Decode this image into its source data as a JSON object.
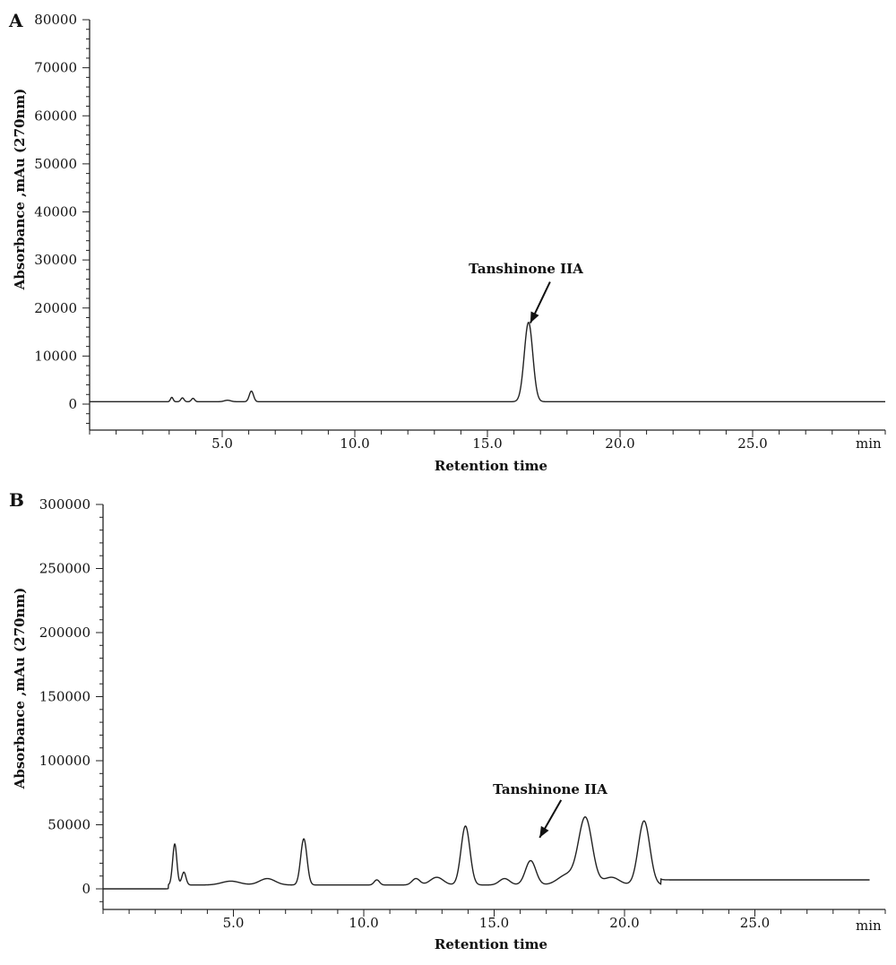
{
  "chart_data": [
    {
      "panel": "A",
      "type": "line",
      "xlabel": "Retention time",
      "ylabel": "Absorbance ,mAu (270nm)",
      "x_unit_label": "min",
      "xlim": [
        0,
        30
      ],
      "ylim": [
        -5000,
        80000
      ],
      "xticks": [
        5.0,
        10.0,
        15.0,
        20.0,
        25.0
      ],
      "xtick_labels": [
        "5.0",
        "10.0",
        "15.0",
        "20.0",
        "25.0"
      ],
      "yticks": [
        0,
        10000,
        20000,
        30000,
        40000,
        50000,
        60000,
        70000,
        80000
      ],
      "ytick_labels": [
        "0",
        "10000",
        "20000",
        "30000",
        "40000",
        "50000",
        "60000",
        "70000",
        "80000"
      ],
      "baseline": 500,
      "peaks": [
        {
          "x": 3.1,
          "height": 900,
          "width": 0.05
        },
        {
          "x": 3.5,
          "height": 800,
          "width": 0.06
        },
        {
          "x": 3.9,
          "height": 700,
          "width": 0.06
        },
        {
          "x": 5.2,
          "height": 300,
          "width": 0.12
        },
        {
          "x": 6.1,
          "height": 2200,
          "width": 0.08
        },
        {
          "x": 16.55,
          "height": 16500,
          "width": 0.16
        }
      ],
      "annotation": {
        "text": "Tanshinone IIA",
        "x": 16.55,
        "y": 16500
      }
    },
    {
      "panel": "B",
      "type": "line",
      "xlabel": "Retention time",
      "ylabel": "Absorbance ,mAu (270nm)",
      "x_unit_label": "min",
      "xlim": [
        0,
        30
      ],
      "ylim": [
        -10000,
        300000
      ],
      "xticks": [
        5.0,
        10.0,
        15.0,
        20.0,
        25.0
      ],
      "xtick_labels": [
        "5.0",
        "10.0",
        "15.0",
        "20.0",
        "25.0"
      ],
      "yticks": [
        0,
        50000,
        100000,
        150000,
        200000,
        250000,
        300000
      ],
      "ytick_labels": [
        "0",
        "50000",
        "100000",
        "150000",
        "200000",
        "250000",
        "300000"
      ],
      "baseline_start": 0,
      "baseline_mid": 3000,
      "baseline_end": 7000,
      "peaks": [
        {
          "x": 2.75,
          "height": 32000,
          "width": 0.08
        },
        {
          "x": 3.1,
          "height": 10000,
          "width": 0.08
        },
        {
          "x": 4.9,
          "height": 3000,
          "width": 0.35
        },
        {
          "x": 6.3,
          "height": 5000,
          "width": 0.3
        },
        {
          "x": 7.7,
          "height": 36000,
          "width": 0.12
        },
        {
          "x": 10.5,
          "height": 4000,
          "width": 0.1
        },
        {
          "x": 12.0,
          "height": 5000,
          "width": 0.15
        },
        {
          "x": 12.8,
          "height": 6000,
          "width": 0.25
        },
        {
          "x": 13.9,
          "height": 46000,
          "width": 0.17
        },
        {
          "x": 15.4,
          "height": 5000,
          "width": 0.2
        },
        {
          "x": 16.4,
          "height": 19000,
          "width": 0.2
        },
        {
          "x": 17.8,
          "height": 8000,
          "width": 0.35
        },
        {
          "x": 18.5,
          "height": 52000,
          "width": 0.26
        },
        {
          "x": 19.5,
          "height": 6000,
          "width": 0.3
        },
        {
          "x": 20.75,
          "height": 50000,
          "width": 0.22
        }
      ],
      "annotation": {
        "text": "Tanshinone IIA",
        "x": 16.4,
        "y": 19000
      }
    }
  ]
}
